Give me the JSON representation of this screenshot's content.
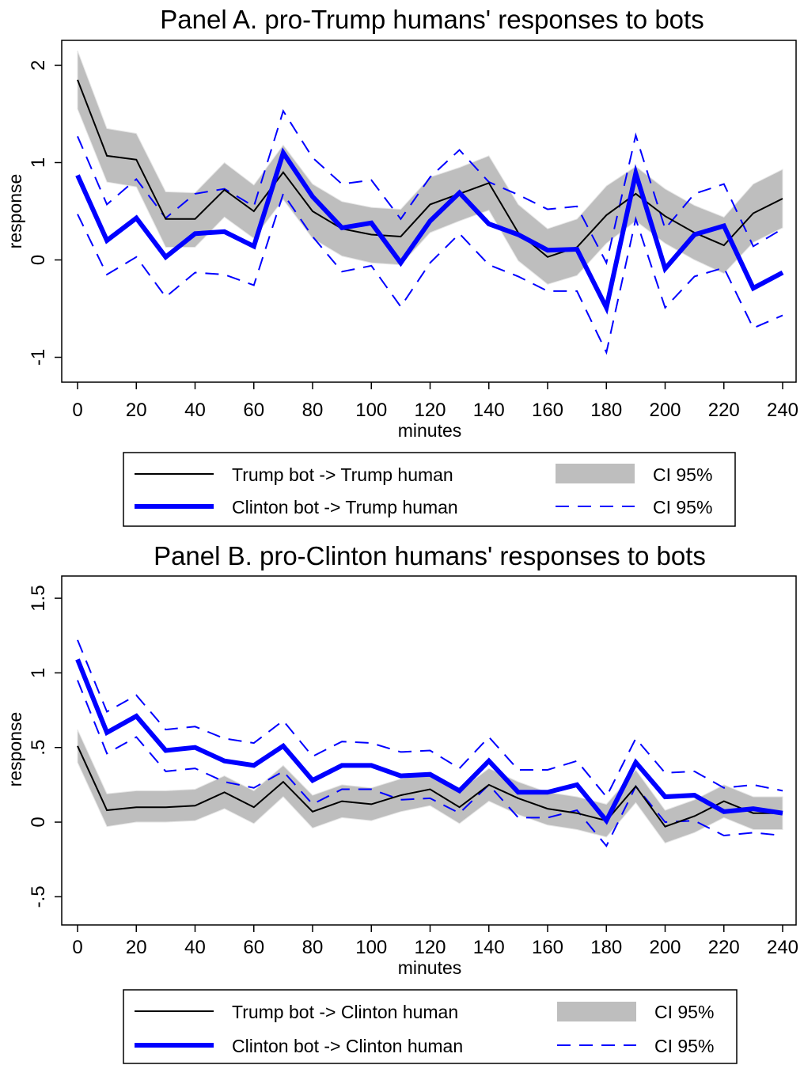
{
  "chart_data": [
    {
      "type": "line",
      "title": "Panel A. pro-Trump humans' responses to bots",
      "xlabel": "minutes",
      "ylabel": "response",
      "x": [
        0,
        10,
        20,
        30,
        40,
        50,
        60,
        70,
        80,
        90,
        100,
        110,
        120,
        130,
        140,
        150,
        160,
        170,
        180,
        190,
        200,
        210,
        220,
        230,
        240
      ],
      "x_ticks": [
        "0",
        "20",
        "40",
        "60",
        "80",
        "100",
        "120",
        "140",
        "160",
        "180",
        "200",
        "220",
        "240"
      ],
      "y_ticks": [
        {
          "value": -1,
          "label": "-1"
        },
        {
          "value": 0,
          "label": "0"
        },
        {
          "value": 1,
          "label": "1"
        },
        {
          "value": 2,
          "label": "2"
        }
      ],
      "xlim": [
        0,
        240
      ],
      "ylim": [
        -1.15,
        2.15
      ],
      "grid": false,
      "legend_placement": "bottom",
      "series": [
        {
          "name": "Trump bot -> Trump human",
          "color": "#000000",
          "values": [
            1.85,
            1.07,
            1.03,
            0.42,
            0.42,
            0.72,
            0.5,
            0.9,
            0.5,
            0.32,
            0.26,
            0.24,
            0.57,
            0.68,
            0.79,
            0.28,
            0.03,
            0.13,
            0.46,
            0.68,
            0.45,
            0.28,
            0.15,
            0.48,
            0.63
          ],
          "ci_lower": [
            1.55,
            0.8,
            0.75,
            0.13,
            0.13,
            0.44,
            0.22,
            0.62,
            0.22,
            0.04,
            -0.03,
            -0.05,
            0.28,
            0.4,
            0.51,
            -0.01,
            -0.25,
            -0.16,
            0.17,
            0.4,
            0.17,
            0.0,
            -0.14,
            0.18,
            0.33
          ],
          "ci_upper": [
            2.15,
            1.35,
            1.3,
            0.7,
            0.69,
            1.0,
            0.77,
            1.18,
            0.78,
            0.6,
            0.54,
            0.52,
            0.85,
            0.95,
            1.07,
            0.57,
            0.32,
            0.42,
            0.76,
            0.96,
            0.73,
            0.56,
            0.44,
            0.78,
            0.93
          ],
          "ci_label": "CI 95%"
        },
        {
          "name": "Clinton bot -> Trump human",
          "color": "#0000ff",
          "values": [
            0.87,
            0.2,
            0.43,
            0.03,
            0.27,
            0.29,
            0.14,
            1.1,
            0.65,
            0.33,
            0.38,
            -0.03,
            0.4,
            0.69,
            0.37,
            0.26,
            0.1,
            0.11,
            -0.49,
            0.89,
            -0.09,
            0.26,
            0.35,
            -0.29,
            -0.13
          ],
          "ci_lower": [
            0.47,
            -0.15,
            0.03,
            -0.38,
            -0.13,
            -0.15,
            -0.26,
            0.68,
            0.24,
            -0.12,
            -0.06,
            -0.48,
            -0.03,
            0.27,
            -0.05,
            -0.17,
            -0.32,
            -0.32,
            -0.95,
            0.42,
            -0.49,
            -0.17,
            -0.08,
            -0.7,
            -0.57
          ],
          "ci_upper": [
            1.27,
            0.57,
            0.83,
            0.43,
            0.68,
            0.73,
            0.55,
            1.53,
            1.05,
            0.78,
            0.82,
            0.42,
            0.85,
            1.13,
            0.8,
            0.67,
            0.52,
            0.55,
            -0.03,
            1.28,
            0.32,
            0.68,
            0.78,
            0.14,
            0.32
          ],
          "ci_label": "CI 95%"
        }
      ]
    },
    {
      "type": "line",
      "title": "Panel B. pro-Clinton humans' responses to bots",
      "xlabel": "minutes",
      "ylabel": "response",
      "x": [
        0,
        10,
        20,
        30,
        40,
        50,
        60,
        70,
        80,
        90,
        100,
        110,
        120,
        130,
        140,
        150,
        160,
        170,
        180,
        190,
        200,
        210,
        220,
        230,
        240
      ],
      "x_ticks": [
        "0",
        "20",
        "40",
        "60",
        "80",
        "100",
        "120",
        "140",
        "160",
        "180",
        "200",
        "220",
        "240"
      ],
      "y_ticks": [
        {
          "value": -0.5,
          "label": "-.5"
        },
        {
          "value": 0,
          "label": "0"
        },
        {
          "value": 0.5,
          "label": ".5"
        },
        {
          "value": 1,
          "label": "1"
        },
        {
          "value": 1.5,
          "label": "1.5"
        }
      ],
      "xlim": [
        0,
        240
      ],
      "ylim": [
        -0.62,
        1.58
      ],
      "grid": false,
      "legend_placement": "bottom",
      "series": [
        {
          "name": "Trump bot -> Clinton human",
          "color": "#000000",
          "values": [
            0.51,
            0.08,
            0.1,
            0.1,
            0.11,
            0.2,
            0.1,
            0.27,
            0.07,
            0.14,
            0.12,
            0.18,
            0.22,
            0.1,
            0.25,
            0.16,
            0.09,
            0.06,
            0.01,
            0.24,
            -0.03,
            0.04,
            0.14,
            0.06,
            0.06
          ],
          "ci_lower": [
            0.4,
            -0.03,
            0.0,
            0.0,
            0.01,
            0.09,
            -0.01,
            0.17,
            -0.04,
            0.03,
            0.01,
            0.07,
            0.11,
            -0.01,
            0.14,
            0.05,
            -0.02,
            -0.05,
            -0.1,
            0.13,
            -0.14,
            -0.07,
            0.03,
            -0.05,
            -0.05
          ],
          "ci_upper": [
            0.62,
            0.19,
            0.21,
            0.21,
            0.22,
            0.31,
            0.21,
            0.38,
            0.18,
            0.25,
            0.23,
            0.29,
            0.33,
            0.21,
            0.36,
            0.27,
            0.2,
            0.17,
            0.12,
            0.35,
            0.08,
            0.15,
            0.25,
            0.17,
            0.17
          ],
          "ci_label": "CI 95%"
        },
        {
          "name": "Clinton bot -> Clinton human",
          "color": "#0000ff",
          "values": [
            1.09,
            0.6,
            0.71,
            0.48,
            0.5,
            0.41,
            0.38,
            0.51,
            0.28,
            0.38,
            0.38,
            0.31,
            0.32,
            0.21,
            0.41,
            0.2,
            0.2,
            0.25,
            0.01,
            0.4,
            0.17,
            0.18,
            0.07,
            0.09,
            0.06
          ],
          "ci_lower": [
            0.95,
            0.46,
            0.57,
            0.34,
            0.36,
            0.27,
            0.23,
            0.34,
            0.12,
            0.22,
            0.22,
            0.15,
            0.16,
            0.06,
            0.25,
            0.03,
            0.03,
            0.08,
            -0.16,
            0.24,
            0.0,
            0.01,
            -0.09,
            -0.07,
            -0.09
          ],
          "ci_upper": [
            1.22,
            0.74,
            0.85,
            0.62,
            0.64,
            0.56,
            0.53,
            0.68,
            0.44,
            0.54,
            0.53,
            0.47,
            0.48,
            0.36,
            0.57,
            0.35,
            0.35,
            0.41,
            0.17,
            0.56,
            0.33,
            0.34,
            0.23,
            0.25,
            0.21
          ],
          "ci_label": "CI 95%"
        }
      ]
    }
  ]
}
